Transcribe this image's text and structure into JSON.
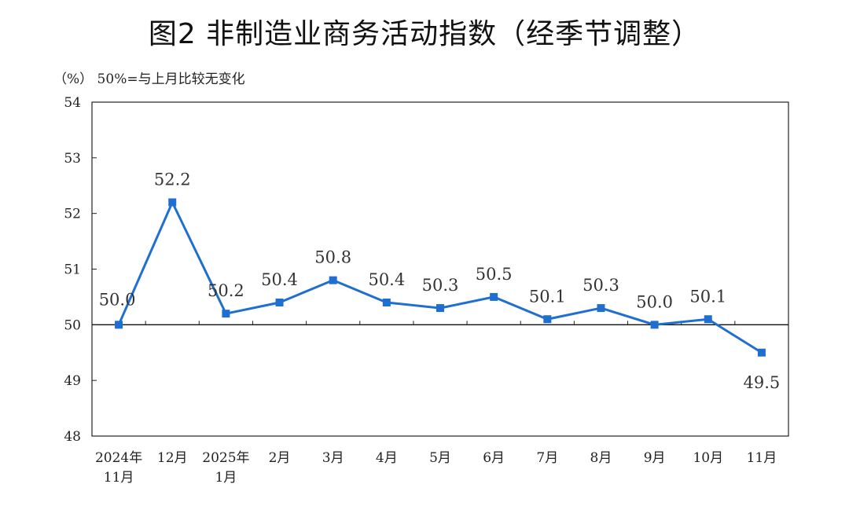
{
  "chart_data": {
    "type": "line",
    "title": "图2  非制造业商务活动指数（经季节调整）",
    "unit_note": "（%） 50%=与上月比较无变化",
    "categories": [
      "2024年\n11月",
      "12月",
      "2025年\n1月",
      "2月",
      "3月",
      "4月",
      "5月",
      "6月",
      "7月",
      "8月",
      "9月",
      "10月",
      "11月"
    ],
    "values": [
      50.0,
      52.2,
      50.2,
      50.4,
      50.8,
      50.4,
      50.3,
      50.5,
      50.1,
      50.3,
      50.0,
      50.1,
      49.5
    ],
    "data_labels": [
      "50.0",
      "52.2",
      "50.2",
      "50.4",
      "50.8",
      "50.4",
      "50.3",
      "50.5",
      "50.1",
      "50.3",
      "50.0",
      "50.1",
      "49.5"
    ],
    "ylim": [
      48,
      54
    ],
    "yticks": [
      "48",
      "49",
      "50",
      "51",
      "52",
      "53",
      "54"
    ],
    "reference_line": 50,
    "grid": false,
    "line_color": "#1f6fd0"
  }
}
